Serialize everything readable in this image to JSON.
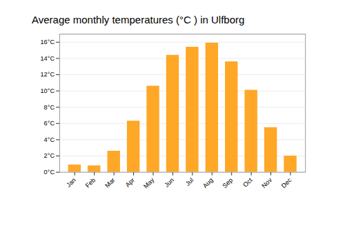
{
  "chart_data": {
    "type": "bar",
    "title": "Average monthly temperatures (°C ) in Ulfborg",
    "categories": [
      "Jan",
      "Feb",
      "Mar",
      "Apr",
      "May",
      "Jun",
      "Jul",
      "Aug",
      "Sep",
      "Oct",
      "Nov",
      "Dec"
    ],
    "values": [
      0.9,
      0.8,
      2.6,
      6.3,
      10.6,
      14.4,
      15.4,
      15.9,
      13.6,
      10.1,
      5.5,
      2.0
    ],
    "color": "#FFA726",
    "ylim": [
      0,
      17
    ],
    "yticks": [
      {
        "value": 0,
        "label": "0°C"
      },
      {
        "value": 2,
        "label": "2°C"
      },
      {
        "value": 4,
        "label": "4°C"
      },
      {
        "value": 6,
        "label": "6°C"
      },
      {
        "value": 8,
        "label": "8°C"
      },
      {
        "value": 10,
        "label": "10°C"
      },
      {
        "value": 12,
        "label": "12°C"
      },
      {
        "value": 14,
        "label": "14°C"
      },
      {
        "value": 16,
        "label": "16°C"
      }
    ],
    "grid": true
  }
}
